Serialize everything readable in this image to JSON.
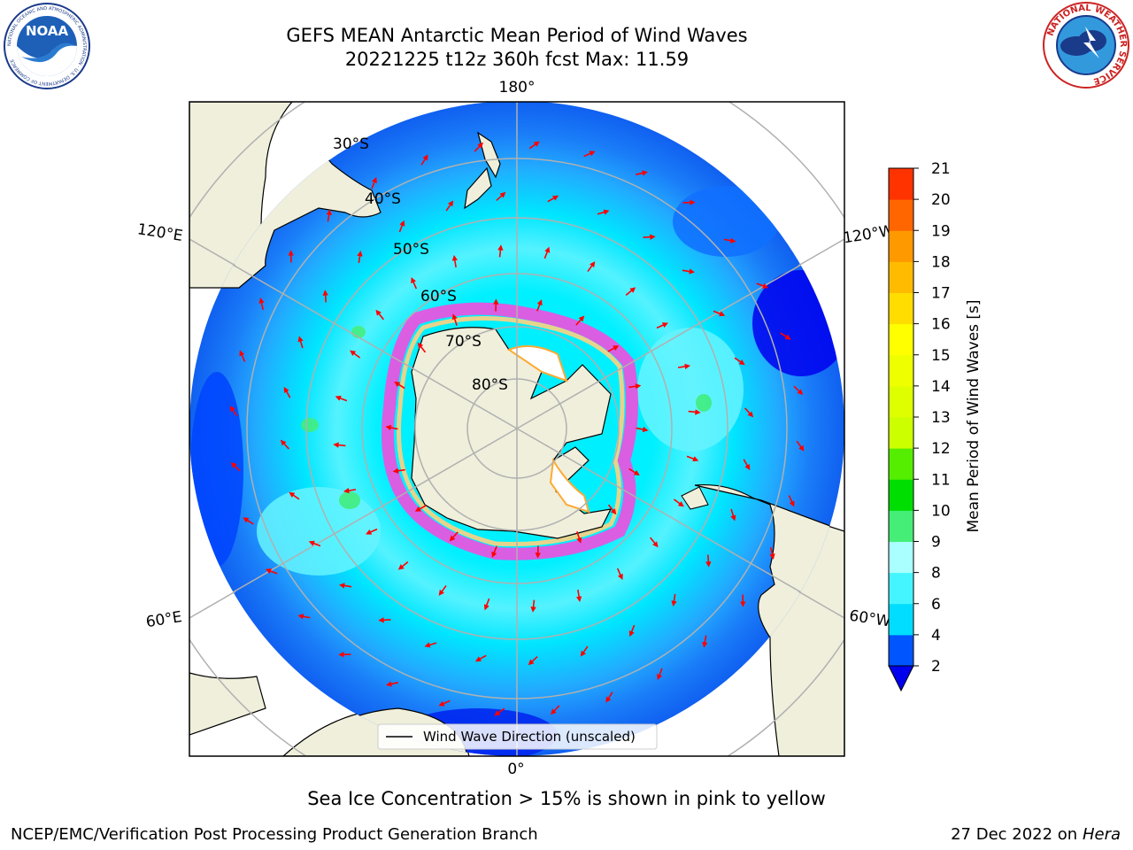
{
  "title": {
    "line1": "GEFS MEAN Antarctic Mean Period of Wind Waves",
    "line2": "20221225 t12z 360h fcst   Max: 11.59"
  },
  "map": {
    "projection": "south-polar-stereographic",
    "lon_labels": {
      "top": "180°",
      "bottom": "0°",
      "left_upper": "120°E",
      "left_lower": "60°E",
      "right_upper": "120°W",
      "right_lower": "60°W"
    },
    "lat_labels": [
      "30°S",
      "40°S",
      "50°S",
      "60°S",
      "70°S",
      "80°S"
    ],
    "legend_label": "Wind Wave Direction (unscaled)",
    "colors": {
      "land": "#efefdc",
      "ocean_outside": "#ffffff",
      "gridline": "#b0b0b0",
      "arrow": "#ff0000",
      "ice_pink": "#ff44dd",
      "ice_yellow": "#ffd080"
    }
  },
  "colorbar": {
    "label": "Mean Period of Wind Waves [s]",
    "ticks": [
      "2",
      "4",
      "6",
      "8",
      "9",
      "10",
      "11",
      "12",
      "13",
      "14",
      "15",
      "16",
      "17",
      "18",
      "19",
      "20",
      "21"
    ],
    "colors": [
      "#0055ff",
      "#00ddff",
      "#44f5ff",
      "#aaffff",
      "#44ee77",
      "#00dd00",
      "#55ee00",
      "#ccff00",
      "#ddff00",
      "#eeff00",
      "#ffff00",
      "#ffdd00",
      "#ffbb00",
      "#ff9900",
      "#ff6600",
      "#ff3300"
    ],
    "extend_color": "#0000ee"
  },
  "footer": {
    "note": "Sea Ice Concentration > 15% is shown in pink to yellow",
    "credit": "NCEP/EMC/Verification Post Processing Product Generation Branch",
    "date": "27 Dec 2022 on",
    "machine": "Hera"
  },
  "logos": {
    "left": {
      "icon": "noaa-logo",
      "text": "NOAA",
      "ring_text": "NATIONAL OCEANIC AND ATMOSPHERIC ADMINISTRATION · U.S. DEPARTMENT OF COMMERCE"
    },
    "right": {
      "icon": "nws-logo",
      "ring_text": "NATIONAL WEATHER SERVICE"
    }
  }
}
